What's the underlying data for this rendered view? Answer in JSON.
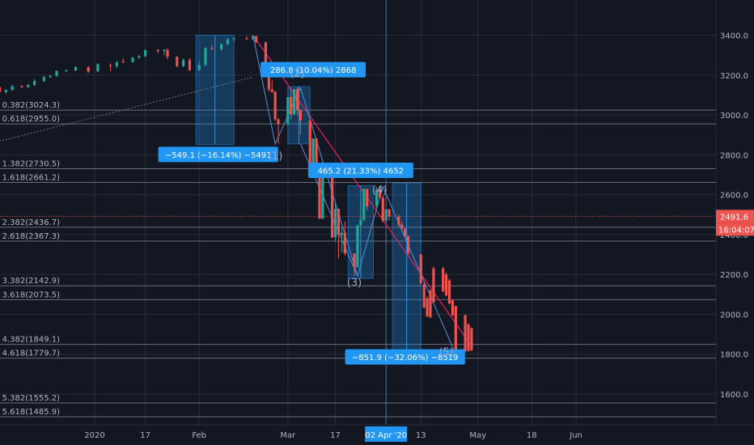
{
  "chart_data": {
    "type": "candlestick",
    "colors": {
      "background": "#131722",
      "up": "#26a69a",
      "down": "#ef5350",
      "grid": "#2a2e39",
      "fib": "#b2b5be",
      "trend": "#e91e63",
      "measure": "#2196f3",
      "wave": "#5d8fd8"
    },
    "y_axis": {
      "min": 1430,
      "max": 3500,
      "ticks": [
        1600,
        1800,
        2000,
        2200,
        2400,
        2600,
        2800,
        3000,
        3200,
        3400
      ],
      "tick_labels": [
        "1600.0",
        "1800.0",
        "2000.0",
        "2200.0",
        "2400.0",
        "2600.0",
        "2800.0",
        "3000.0",
        "3200.0",
        "3400.0"
      ]
    },
    "x_axis": {
      "ticks": [
        {
          "label": "2020",
          "date": "2020-01-01"
        },
        {
          "label": "17",
          "date": "2020-01-17"
        },
        {
          "label": "Feb",
          "date": "2020-02-03"
        },
        {
          "label": "Mar",
          "date": "2020-03-02"
        },
        {
          "label": "17",
          "date": "2020-03-17"
        },
        {
          "label": "13",
          "date": "2020-04-13"
        },
        {
          "label": "May",
          "date": "2020-05-01"
        },
        {
          "label": "18",
          "date": "2020-05-18"
        },
        {
          "label": "Jun",
          "date": "2020-06-01"
        }
      ],
      "crosshair": {
        "label": "02 Apr '20",
        "date": "2020-04-02"
      }
    },
    "current_price": {
      "label": "2491.6",
      "timer": "16:04:07",
      "value": 2491.6
    },
    "fib_levels": [
      {
        "label": "0.382(3024.3)",
        "value": 3024.3
      },
      {
        "label": "0.618(2955.0)",
        "value": 2955.0
      },
      {
        "label": "1.382(2730.5)",
        "value": 2730.5
      },
      {
        "label": "1.618(2661.2)",
        "value": 2661.2
      },
      {
        "label": "2.382(2436.7)",
        "value": 2436.7
      },
      {
        "label": "2.618(2367.3)",
        "value": 2367.3
      },
      {
        "label": "3.382(2142.9)",
        "value": 2142.9
      },
      {
        "label": "3.618(2073.5)",
        "value": 2073.5
      },
      {
        "label": "4.382(1849.1)",
        "value": 1849.1
      },
      {
        "label": "4.618(1779.7)",
        "value": 1779.7
      },
      {
        "label": "5.382(1555.2)",
        "value": 1555.2
      },
      {
        "label": "5.618(1485.9)",
        "value": 1485.9
      }
    ],
    "measurements": [
      {
        "label": "−549.1 (−16.14%) −5491",
        "from_date": "2020-02-02",
        "to_date": "2020-02-14",
        "from_value": 3400,
        "to_value": 2851
      },
      {
        "label": "286.8 (10.04%) 2868",
        "from_date": "2020-03-02",
        "to_date": "2020-03-09",
        "from_value": 2855,
        "to_value": 3142
      },
      {
        "label": "465.2 (21.33%) 4652",
        "from_date": "2020-03-21",
        "to_date": "2020-03-29",
        "from_value": 2180,
        "to_value": 2645
      },
      {
        "label": "−851.9 (−32.06%) −8519",
        "from_date": "2020-04-04",
        "to_date": "2020-04-13",
        "from_value": 2658,
        "to_value": 1806
      }
    ],
    "wave_labels": [
      {
        "label": "(1)",
        "date": "2020-02-27",
        "value": 2778
      },
      {
        "label": "(2)",
        "date": "2020-03-05",
        "value": 3192
      },
      {
        "label": "(3)",
        "date": "2020-03-23",
        "value": 2142
      },
      {
        "label": "(4)",
        "date": "2020-03-31",
        "value": 2607
      },
      {
        "label": "(5)",
        "date": "2020-04-21",
        "value": 1793
      }
    ],
    "candles": [
      {
        "date": "2019-11-11",
        "o": 3087,
        "h": 3095,
        "l": 3080,
        "c": 3091
      },
      {
        "date": "2019-11-13",
        "o": 3090,
        "h": 3098,
        "l": 3085,
        "c": 3094
      },
      {
        "date": "2019-11-15",
        "o": 3094,
        "h": 3105,
        "l": 3090,
        "c": 3101
      },
      {
        "date": "2019-11-18",
        "o": 3101,
        "h": 3108,
        "l": 3095,
        "c": 3104
      },
      {
        "date": "2019-11-20",
        "o": 3104,
        "h": 3115,
        "l": 3098,
        "c": 3110
      },
      {
        "date": "2019-11-22",
        "o": 3110,
        "h": 3116,
        "l": 3100,
        "c": 3108
      },
      {
        "date": "2019-11-25",
        "o": 3108,
        "h": 3125,
        "l": 3105,
        "c": 3120
      },
      {
        "date": "2019-11-27",
        "o": 3120,
        "h": 3140,
        "l": 3118,
        "c": 3135
      },
      {
        "date": "2019-11-29",
        "o": 3135,
        "h": 3145,
        "l": 3130,
        "c": 3142
      },
      {
        "date": "2019-12-02",
        "o": 3140,
        "h": 3146,
        "l": 3110,
        "c": 3115
      },
      {
        "date": "2019-12-04",
        "o": 3115,
        "h": 3130,
        "l": 3105,
        "c": 3125
      },
      {
        "date": "2019-12-06",
        "o": 3125,
        "h": 3150,
        "l": 3122,
        "c": 3145
      },
      {
        "date": "2019-12-09",
        "o": 3145,
        "h": 3150,
        "l": 3135,
        "c": 3140
      },
      {
        "date": "2019-12-11",
        "o": 3140,
        "h": 3155,
        "l": 3136,
        "c": 3150
      },
      {
        "date": "2019-12-13",
        "o": 3150,
        "h": 3180,
        "l": 3145,
        "c": 3170
      },
      {
        "date": "2019-12-16",
        "o": 3170,
        "h": 3195,
        "l": 3165,
        "c": 3190
      },
      {
        "date": "2019-12-18",
        "o": 3190,
        "h": 3200,
        "l": 3185,
        "c": 3196
      },
      {
        "date": "2019-12-20",
        "o": 3196,
        "h": 3225,
        "l": 3190,
        "c": 3220
      },
      {
        "date": "2019-12-23",
        "o": 3220,
        "h": 3228,
        "l": 3215,
        "c": 3223
      },
      {
        "date": "2019-12-26",
        "o": 3223,
        "h": 3245,
        "l": 3220,
        "c": 3240
      },
      {
        "date": "2019-12-30",
        "o": 3240,
        "h": 3245,
        "l": 3210,
        "c": 3218
      },
      {
        "date": "2020-01-02",
        "o": 3218,
        "h": 3260,
        "l": 3215,
        "c": 3255
      },
      {
        "date": "2020-01-06",
        "o": 3250,
        "h": 3258,
        "l": 3220,
        "c": 3245
      },
      {
        "date": "2020-01-08",
        "o": 3245,
        "h": 3270,
        "l": 3235,
        "c": 3265
      },
      {
        "date": "2020-01-10",
        "o": 3270,
        "h": 3285,
        "l": 3260,
        "c": 3266
      },
      {
        "date": "2020-01-13",
        "o": 3266,
        "h": 3290,
        "l": 3262,
        "c": 3288
      },
      {
        "date": "2020-01-15",
        "o": 3288,
        "h": 3300,
        "l": 3280,
        "c": 3295
      },
      {
        "date": "2020-01-17",
        "o": 3295,
        "h": 3330,
        "l": 3290,
        "c": 3325
      },
      {
        "date": "2020-01-21",
        "o": 3325,
        "h": 3332,
        "l": 3310,
        "c": 3320
      },
      {
        "date": "2020-01-23",
        "o": 3320,
        "h": 3330,
        "l": 3300,
        "c": 3326
      },
      {
        "date": "2020-01-24",
        "o": 3326,
        "h": 3335,
        "l": 3280,
        "c": 3292
      },
      {
        "date": "2020-01-27",
        "o": 3292,
        "h": 3295,
        "l": 3240,
        "c": 3245
      },
      {
        "date": "2020-01-29",
        "o": 3245,
        "h": 3285,
        "l": 3240,
        "c": 3275
      },
      {
        "date": "2020-01-31",
        "o": 3275,
        "h": 3285,
        "l": 3220,
        "c": 3225
      },
      {
        "date": "2020-02-03",
        "o": 3225,
        "h": 3270,
        "l": 3220,
        "c": 3250
      },
      {
        "date": "2020-02-05",
        "o": 3250,
        "h": 3340,
        "l": 3245,
        "c": 3335
      },
      {
        "date": "2020-02-07",
        "o": 3335,
        "h": 3350,
        "l": 3325,
        "c": 3330
      },
      {
        "date": "2020-02-10",
        "o": 3330,
        "h": 3360,
        "l": 3320,
        "c": 3355
      },
      {
        "date": "2020-02-12",
        "o": 3355,
        "h": 3385,
        "l": 3350,
        "c": 3380
      },
      {
        "date": "2020-02-14",
        "o": 3380,
        "h": 3390,
        "l": 3370,
        "c": 3385
      },
      {
        "date": "2020-02-18",
        "o": 3385,
        "h": 3395,
        "l": 3375,
        "c": 3380
      },
      {
        "date": "2020-02-20",
        "o": 3380,
        "h": 3400,
        "l": 3375,
        "c": 3395
      },
      {
        "date": "2020-02-21",
        "o": 3395,
        "h": 3398,
        "l": 3360,
        "c": 3365
      },
      {
        "date": "2020-02-24",
        "o": 3365,
        "h": 3368,
        "l": 3220,
        "c": 3228
      },
      {
        "date": "2020-02-25",
        "o": 3228,
        "h": 3240,
        "l": 3115,
        "c": 3128
      },
      {
        "date": "2020-02-26",
        "o": 3128,
        "h": 3175,
        "l": 3110,
        "c": 3116
      },
      {
        "date": "2020-02-27",
        "o": 3116,
        "h": 3120,
        "l": 2970,
        "c": 2978
      },
      {
        "date": "2020-02-28",
        "o": 2978,
        "h": 2985,
        "l": 2855,
        "c": 2954
      },
      {
        "date": "2020-03-02",
        "o": 2954,
        "h": 3090,
        "l": 2945,
        "c": 3090
      },
      {
        "date": "2020-03-03",
        "o": 3090,
        "h": 3136,
        "l": 2976,
        "c": 3003
      },
      {
        "date": "2020-03-04",
        "o": 3003,
        "h": 3130,
        "l": 3000,
        "c": 3130
      },
      {
        "date": "2020-03-05",
        "o": 3130,
        "h": 3140,
        "l": 3000,
        "c": 3024
      },
      {
        "date": "2020-03-06",
        "o": 3024,
        "h": 3030,
        "l": 2901,
        "c": 2972
      },
      {
        "date": "2020-03-09",
        "o": 2972,
        "h": 2976,
        "l": 2734,
        "c": 2746
      },
      {
        "date": "2020-03-10",
        "o": 2746,
        "h": 2882,
        "l": 2734,
        "c": 2882
      },
      {
        "date": "2020-03-11",
        "o": 2882,
        "h": 2885,
        "l": 2707,
        "c": 2741
      },
      {
        "date": "2020-03-12",
        "o": 2741,
        "h": 2745,
        "l": 2478,
        "c": 2480
      },
      {
        "date": "2020-03-13",
        "o": 2480,
        "h": 2711,
        "l": 2478,
        "c": 2711
      },
      {
        "date": "2020-03-16",
        "o": 2711,
        "h": 2712,
        "l": 2380,
        "c": 2386
      },
      {
        "date": "2020-03-17",
        "o": 2386,
        "h": 2553,
        "l": 2367,
        "c": 2529
      },
      {
        "date": "2020-03-18",
        "o": 2529,
        "h": 2530,
        "l": 2280,
        "c": 2398
      },
      {
        "date": "2020-03-19",
        "o": 2398,
        "h": 2440,
        "l": 2310,
        "c": 2409
      },
      {
        "date": "2020-03-20",
        "o": 2409,
        "h": 2467,
        "l": 2295,
        "c": 2305
      },
      {
        "date": "2020-03-23",
        "o": 2305,
        "h": 2306,
        "l": 2192,
        "c": 2237
      },
      {
        "date": "2020-03-24",
        "o": 2237,
        "h": 2450,
        "l": 2235,
        "c": 2447
      },
      {
        "date": "2020-03-25",
        "o": 2447,
        "h": 2572,
        "l": 2420,
        "c": 2475
      },
      {
        "date": "2020-03-26",
        "o": 2475,
        "h": 2630,
        "l": 2465,
        "c": 2630
      },
      {
        "date": "2020-03-27",
        "o": 2630,
        "h": 2630,
        "l": 2520,
        "c": 2541
      },
      {
        "date": "2020-03-30",
        "o": 2541,
        "h": 2640,
        "l": 2530,
        "c": 2626
      },
      {
        "date": "2020-03-31",
        "o": 2626,
        "h": 2640,
        "l": 2580,
        "c": 2585
      },
      {
        "date": "2020-04-01",
        "o": 2585,
        "h": 2600,
        "l": 2460,
        "c": 2470
      },
      {
        "date": "2020-04-02",
        "o": 2470,
        "h": 2530,
        "l": 2460,
        "c": 2526
      },
      {
        "date": "2020-04-03",
        "o": 2526,
        "h": 2530,
        "l": 2470,
        "c": 2490
      },
      {
        "date": "2020-04-06",
        "o": 2490,
        "h": 2500,
        "l": 2440,
        "c": 2450
      },
      {
        "date": "2020-04-07",
        "o": 2450,
        "h": 2465,
        "l": 2420,
        "c": 2430
      },
      {
        "date": "2020-04-08",
        "o": 2430,
        "h": 2435,
        "l": 2380,
        "c": 2392
      },
      {
        "date": "2020-04-09",
        "o": 2392,
        "h": 2395,
        "l": 2300,
        "c": 2305
      },
      {
        "date": "2020-04-13",
        "o": 2300,
        "h": 2302,
        "l": 2150,
        "c": 2156
      },
      {
        "date": "2020-04-14",
        "o": 2150,
        "h": 2160,
        "l": 2030,
        "c": 2034
      },
      {
        "date": "2020-04-15",
        "o": 2080,
        "h": 2090,
        "l": 1985,
        "c": 1990
      },
      {
        "date": "2020-04-16",
        "o": 2120,
        "h": 2125,
        "l": 1980,
        "c": 1985
      },
      {
        "date": "2020-04-17",
        "o": 2230,
        "h": 2240,
        "l": 2055,
        "c": 2060
      },
      {
        "date": "2020-04-20",
        "o": 2230,
        "h": 2240,
        "l": 2110,
        "c": 2115
      },
      {
        "date": "2020-04-21",
        "o": 2200,
        "h": 2210,
        "l": 2090,
        "c": 2095
      },
      {
        "date": "2020-04-22",
        "o": 2170,
        "h": 2180,
        "l": 2050,
        "c": 2054
      },
      {
        "date": "2020-04-23",
        "o": 2070,
        "h": 2075,
        "l": 1990,
        "c": 1995
      },
      {
        "date": "2020-04-24",
        "o": 2040,
        "h": 2045,
        "l": 1800,
        "c": 1805
      },
      {
        "date": "2020-04-27",
        "o": 1995,
        "h": 2000,
        "l": 1810,
        "c": 1815
      },
      {
        "date": "2020-04-28",
        "o": 1950,
        "h": 1955,
        "l": 1812,
        "c": 1816
      },
      {
        "date": "2020-04-29",
        "o": 1930,
        "h": 1935,
        "l": 1815,
        "c": 1820
      }
    ]
  }
}
